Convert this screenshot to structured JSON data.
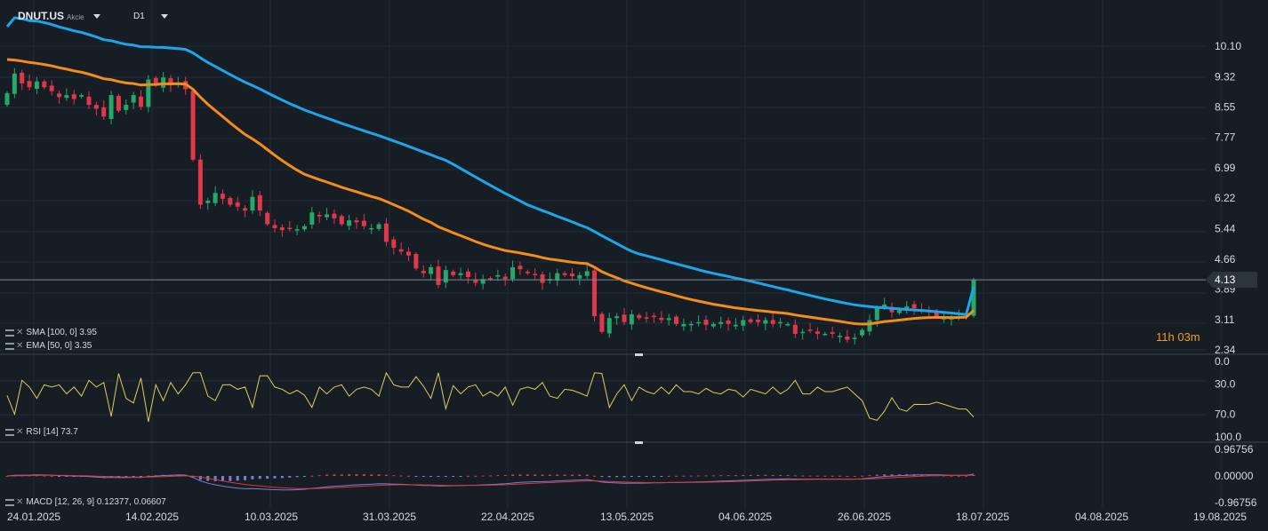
{
  "header": {
    "symbol": "DNUT.US",
    "instrument_type": "Akcie",
    "timeframe": "D1"
  },
  "countdown": {
    "label": "11h 03m"
  },
  "legend": {
    "sma": "SMA [100, 0] 3.95",
    "ema": "EMA [50, 0] 3.35",
    "rsi": "RSI [14] 73.7",
    "macd": "MACD [12, 26, 9] 0.12377, 0.06607"
  },
  "colors": {
    "background": "#161d25",
    "grid": "#222b35",
    "up_candle": "#26a869",
    "down_candle": "#e0384a",
    "sma": "#1ea5e9",
    "ema": "#f28c1a",
    "rsi": "#d8cf5a",
    "macd_line": "#7b7fd4",
    "signal_line": "#d43b3b",
    "current_price_tag": "#2b333d"
  },
  "chart_data": [
    {
      "type": "candlestick",
      "title": "DNUT.US",
      "x_ticks": [
        "24.01.2025",
        "14.02.2025",
        "10.03.2025",
        "31.03.2025",
        "22.04.2025",
        "13.05.2025",
        "04.06.2025",
        "26.06.2025",
        "18.07.2025",
        "04.08.2025",
        "19.08.2025"
      ],
      "y_ticks": [
        "10.10",
        "9.32",
        "8.55",
        "7.77",
        "6.99",
        "6.22",
        "5.44",
        "4.66",
        "3.89",
        "3.11",
        "2.34"
      ],
      "current_price": "4.13",
      "grid": true,
      "series": [
        {
          "name": "SMA [100, 0]",
          "last_value": 3.95
        },
        {
          "name": "EMA [50, 0]",
          "last_value": 3.35
        }
      ],
      "closes": [
        8.9,
        9.4,
        9.15,
        9.05,
        9.2,
        9.05,
        8.95,
        8.8,
        8.85,
        8.75,
        8.85,
        8.6,
        8.5,
        8.3,
        8.85,
        8.45,
        8.6,
        8.85,
        8.55,
        9.25,
        9.1,
        9.3,
        9.1,
        9.15,
        9.0,
        7.2,
        6.05,
        6.15,
        6.35,
        6.2,
        6.05,
        6.0,
        5.9,
        6.25,
        5.9,
        5.55,
        5.45,
        5.4,
        5.45,
        5.42,
        5.5,
        5.85,
        5.75,
        5.8,
        5.7,
        5.55,
        5.65,
        5.6,
        5.5,
        5.45,
        5.55,
        5.1,
        4.95,
        4.85,
        4.75,
        4.42,
        4.3,
        4.45,
        4.0,
        4.38,
        4.25,
        4.3,
        4.2,
        4.05,
        4.15,
        4.15,
        4.25,
        4.15,
        4.45,
        4.4,
        4.3,
        4.25,
        4.05,
        4.15,
        4.3,
        4.25,
        4.22,
        4.25,
        4.35,
        3.2,
        2.8,
        3.15,
        3.2,
        3.05,
        3.25,
        3.15,
        3.15,
        3.2,
        3.1,
        3.15,
        3.0,
        3.0,
        3.0,
        3.05,
        2.98,
        3.0,
        3.05,
        3.0,
        2.98,
        3.1,
        3.05,
        3.05,
        3.1,
        3.0,
        3.05,
        3.0,
        2.75,
        2.8,
        2.85,
        2.75,
        2.75,
        2.75,
        2.7,
        2.6,
        2.65,
        2.85,
        3.1,
        3.4,
        3.5,
        3.3,
        3.35,
        3.45,
        3.4,
        3.35,
        3.3,
        3.2,
        3.15,
        3.15,
        3.2,
        3.25,
        4.13
      ]
    },
    {
      "type": "line",
      "name": "RSI [14]",
      "last_value": 73.7,
      "y_ticks": [
        "100.0",
        "70.0",
        "30.0",
        "0.0"
      ],
      "ylim": [
        0,
        100
      ]
    },
    {
      "type": "histogram",
      "name": "MACD [12, 26, 9]",
      "macd": 0.12377,
      "signal": 0.06607,
      "y_ticks": [
        "0.96756",
        "0.00000",
        "-0.96756"
      ],
      "ylim": [
        -0.96756,
        0.96756
      ]
    }
  ]
}
